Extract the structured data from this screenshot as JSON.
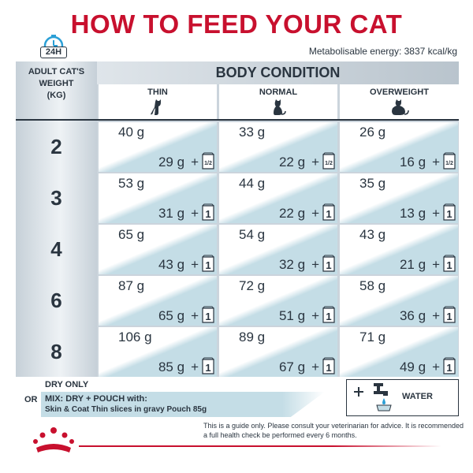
{
  "title": "HOW TO FEED YOUR CAT",
  "badge": "24H",
  "energy": "Metabolisable energy: 3837 kcal/kg",
  "weight_header": [
    "ADULT CAT'S",
    "WEIGHT",
    "(KG)"
  ],
  "body_condition": "BODY CONDITION",
  "columns": [
    "THIN",
    "NORMAL",
    "OVERWEIGHT"
  ],
  "rows": [
    {
      "weight": "2",
      "cells": [
        {
          "dry": "40 g",
          "mix": "29 g",
          "pouch": "1/2"
        },
        {
          "dry": "33 g",
          "mix": "22 g",
          "pouch": "1/2"
        },
        {
          "dry": "26 g",
          "mix": "16 g",
          "pouch": "1/2"
        }
      ]
    },
    {
      "weight": "3",
      "cells": [
        {
          "dry": "53 g",
          "mix": "31 g",
          "pouch": "1"
        },
        {
          "dry": "44 g",
          "mix": "22 g",
          "pouch": "1"
        },
        {
          "dry": "35 g",
          "mix": "13 g",
          "pouch": "1"
        }
      ]
    },
    {
      "weight": "4",
      "cells": [
        {
          "dry": "65 g",
          "mix": "43 g",
          "pouch": "1"
        },
        {
          "dry": "54 g",
          "mix": "32 g",
          "pouch": "1"
        },
        {
          "dry": "43 g",
          "mix": "21 g",
          "pouch": "1"
        }
      ]
    },
    {
      "weight": "6",
      "cells": [
        {
          "dry": "87 g",
          "mix": "65 g",
          "pouch": "1"
        },
        {
          "dry": "72 g",
          "mix": "51 g",
          "pouch": "1"
        },
        {
          "dry": "58 g",
          "mix": "36 g",
          "pouch": "1"
        }
      ]
    },
    {
      "weight": "8",
      "cells": [
        {
          "dry": "106 g",
          "mix": "85 g",
          "pouch": "1"
        },
        {
          "dry": "89 g",
          "mix": "67 g",
          "pouch": "1"
        },
        {
          "dry": "71 g",
          "mix": "49 g",
          "pouch": "1"
        }
      ]
    }
  ],
  "plus": "+",
  "legend": {
    "dry_only": "DRY ONLY",
    "or": "OR",
    "mix_line1": "MIX: DRY + POUCH with:",
    "mix_line2": "Skin & Coat Thin slices in gravy Pouch 85g",
    "water": "WATER",
    "plus": "+"
  },
  "footnote": "This is a guide only. Please consult your veterinarian for advice. It is recommended a full health check be performed every 6 months.",
  "colors": {
    "brand_red": "#c8102e",
    "mix_blue": "#c4dde6",
    "ink": "#2a3540"
  }
}
